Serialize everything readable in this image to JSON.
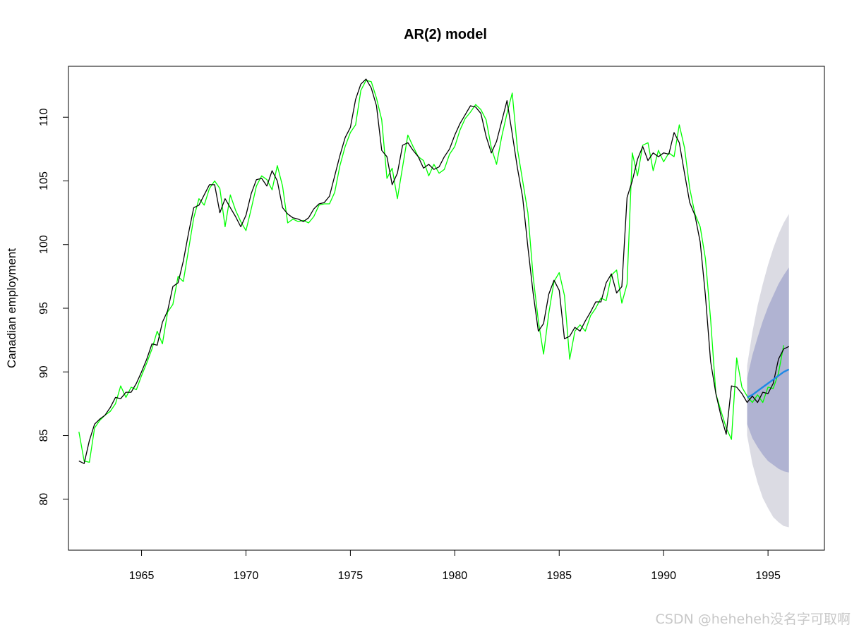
{
  "chart_data": {
    "type": "line",
    "title": "AR(2) model",
    "xlabel": "",
    "ylabel": "Canadian employment",
    "xlim": [
      1961.5,
      1997.7
    ],
    "ylim": [
      76,
      114
    ],
    "x_ticks": [
      1965,
      1970,
      1975,
      1980,
      1985,
      1990,
      1995
    ],
    "y_ticks": [
      80,
      85,
      90,
      95,
      100,
      105,
      110
    ],
    "grid": false,
    "legend": "none",
    "series": [
      {
        "role": "observed",
        "color": "#000000",
        "points": [
          [
            1962.0,
            83.0
          ],
          [
            1962.25,
            82.8
          ],
          [
            1962.5,
            84.6
          ],
          [
            1962.75,
            85.9
          ],
          [
            1963.0,
            86.3
          ],
          [
            1963.25,
            86.6
          ],
          [
            1963.5,
            87.2
          ],
          [
            1963.75,
            88.0
          ],
          [
            1964.0,
            87.9
          ],
          [
            1964.25,
            88.4
          ],
          [
            1964.5,
            88.4
          ],
          [
            1964.75,
            89.1
          ],
          [
            1965.0,
            90.0
          ],
          [
            1965.25,
            91.0
          ],
          [
            1965.5,
            92.2
          ],
          [
            1965.75,
            92.1
          ],
          [
            1966.0,
            93.9
          ],
          [
            1966.25,
            94.8
          ],
          [
            1966.5,
            96.7
          ],
          [
            1966.75,
            97.0
          ],
          [
            1967.0,
            98.7
          ],
          [
            1967.25,
            100.9
          ],
          [
            1967.5,
            102.9
          ],
          [
            1967.75,
            103.1
          ],
          [
            1968.0,
            103.9
          ],
          [
            1968.25,
            104.7
          ],
          [
            1968.5,
            104.7
          ],
          [
            1968.75,
            102.5
          ],
          [
            1969.0,
            103.6
          ],
          [
            1969.25,
            102.9
          ],
          [
            1969.5,
            102.2
          ],
          [
            1969.75,
            101.4
          ],
          [
            1970.0,
            102.3
          ],
          [
            1970.25,
            104.0
          ],
          [
            1970.5,
            105.1
          ],
          [
            1970.75,
            105.2
          ],
          [
            1971.0,
            104.6
          ],
          [
            1971.25,
            105.8
          ],
          [
            1971.5,
            105.0
          ],
          [
            1971.75,
            102.9
          ],
          [
            1972.0,
            102.4
          ],
          [
            1972.25,
            102.1
          ],
          [
            1972.5,
            102.0
          ],
          [
            1972.75,
            101.8
          ],
          [
            1973.0,
            102.1
          ],
          [
            1973.25,
            102.8
          ],
          [
            1973.5,
            103.2
          ],
          [
            1973.75,
            103.3
          ],
          [
            1974.0,
            103.8
          ],
          [
            1974.25,
            105.4
          ],
          [
            1974.5,
            107.0
          ],
          [
            1974.75,
            108.4
          ],
          [
            1975.0,
            109.2
          ],
          [
            1975.25,
            111.4
          ],
          [
            1975.5,
            112.6
          ],
          [
            1975.75,
            113.0
          ],
          [
            1976.0,
            112.3
          ],
          [
            1976.25,
            110.9
          ],
          [
            1976.5,
            107.4
          ],
          [
            1976.75,
            106.9
          ],
          [
            1977.0,
            104.7
          ],
          [
            1977.25,
            105.6
          ],
          [
            1977.5,
            107.8
          ],
          [
            1977.75,
            108.0
          ],
          [
            1978.0,
            107.4
          ],
          [
            1978.25,
            106.9
          ],
          [
            1978.5,
            106.0
          ],
          [
            1978.75,
            106.3
          ],
          [
            1979.0,
            105.9
          ],
          [
            1979.25,
            106.1
          ],
          [
            1979.5,
            106.9
          ],
          [
            1979.75,
            107.5
          ],
          [
            1980.0,
            108.6
          ],
          [
            1980.25,
            109.5
          ],
          [
            1980.5,
            110.2
          ],
          [
            1980.75,
            110.9
          ],
          [
            1981.0,
            110.8
          ],
          [
            1981.25,
            110.3
          ],
          [
            1981.5,
            108.5
          ],
          [
            1981.75,
            107.2
          ],
          [
            1982.0,
            108.1
          ],
          [
            1982.25,
            109.7
          ],
          [
            1982.5,
            111.3
          ],
          [
            1982.75,
            108.7
          ],
          [
            1983.0,
            106.0
          ],
          [
            1983.25,
            103.7
          ],
          [
            1983.5,
            99.8
          ],
          [
            1983.75,
            96.2
          ],
          [
            1984.0,
            93.2
          ],
          [
            1984.25,
            93.8
          ],
          [
            1984.5,
            96.1
          ],
          [
            1984.75,
            97.2
          ],
          [
            1985.0,
            96.4
          ],
          [
            1985.25,
            92.6
          ],
          [
            1985.5,
            92.8
          ],
          [
            1985.75,
            93.5
          ],
          [
            1986.0,
            93.2
          ],
          [
            1986.25,
            94.0
          ],
          [
            1986.5,
            94.7
          ],
          [
            1986.75,
            95.5
          ],
          [
            1987.0,
            95.5
          ],
          [
            1987.25,
            97.0
          ],
          [
            1987.5,
            97.7
          ],
          [
            1987.75,
            96.2
          ],
          [
            1988.0,
            96.7
          ],
          [
            1988.25,
            103.7
          ],
          [
            1988.5,
            105.0
          ],
          [
            1988.75,
            106.7
          ],
          [
            1989.0,
            107.7
          ],
          [
            1989.25,
            106.6
          ],
          [
            1989.5,
            107.2
          ],
          [
            1989.75,
            106.9
          ],
          [
            1990.0,
            107.2
          ],
          [
            1990.25,
            107.1
          ],
          [
            1990.5,
            108.8
          ],
          [
            1990.75,
            108.0
          ],
          [
            1991.0,
            105.6
          ],
          [
            1991.25,
            103.3
          ],
          [
            1991.5,
            102.3
          ],
          [
            1991.75,
            100.2
          ],
          [
            1992.0,
            96.0
          ],
          [
            1992.25,
            90.8
          ],
          [
            1992.5,
            88.3
          ],
          [
            1992.75,
            86.5
          ],
          [
            1993.0,
            85.1
          ],
          [
            1993.25,
            88.9
          ],
          [
            1993.5,
            88.8
          ],
          [
            1993.75,
            88.3
          ],
          [
            1994.0,
            87.6
          ],
          [
            1994.25,
            88.1
          ],
          [
            1994.5,
            87.6
          ],
          [
            1994.75,
            88.4
          ],
          [
            1995.0,
            88.3
          ],
          [
            1995.25,
            89.1
          ],
          [
            1995.5,
            91.0
          ],
          [
            1995.75,
            91.8
          ],
          [
            1996.0,
            92.0
          ]
        ]
      },
      {
        "role": "fitted",
        "color": "#00ff00",
        "points": [
          [
            1962.0,
            85.3
          ],
          [
            1962.25,
            83.0
          ],
          [
            1962.5,
            82.9
          ],
          [
            1962.75,
            85.6
          ],
          [
            1963.0,
            86.2
          ],
          [
            1963.25,
            86.6
          ],
          [
            1963.5,
            86.9
          ],
          [
            1963.75,
            87.5
          ],
          [
            1964.0,
            88.9
          ],
          [
            1964.25,
            88.0
          ],
          [
            1964.5,
            88.8
          ],
          [
            1964.75,
            88.6
          ],
          [
            1965.0,
            89.7
          ],
          [
            1965.25,
            90.7
          ],
          [
            1965.5,
            91.8
          ],
          [
            1965.75,
            93.2
          ],
          [
            1966.0,
            92.2
          ],
          [
            1966.25,
            94.7
          ],
          [
            1966.5,
            95.3
          ],
          [
            1966.75,
            97.5
          ],
          [
            1967.0,
            97.1
          ],
          [
            1967.25,
            99.6
          ],
          [
            1967.5,
            102.1
          ],
          [
            1967.75,
            103.6
          ],
          [
            1968.0,
            103.1
          ],
          [
            1968.25,
            104.4
          ],
          [
            1968.5,
            105.0
          ],
          [
            1968.75,
            104.4
          ],
          [
            1969.0,
            101.4
          ],
          [
            1969.25,
            103.9
          ],
          [
            1969.5,
            102.7
          ],
          [
            1969.75,
            101.8
          ],
          [
            1970.0,
            101.1
          ],
          [
            1970.25,
            102.8
          ],
          [
            1970.5,
            104.6
          ],
          [
            1970.75,
            105.4
          ],
          [
            1971.0,
            105.1
          ],
          [
            1971.25,
            104.3
          ],
          [
            1971.5,
            106.2
          ],
          [
            1971.75,
            104.6
          ],
          [
            1972.0,
            101.7
          ],
          [
            1972.25,
            102.0
          ],
          [
            1972.5,
            101.8
          ],
          [
            1972.75,
            101.9
          ],
          [
            1973.0,
            101.7
          ],
          [
            1973.25,
            102.2
          ],
          [
            1973.5,
            103.1
          ],
          [
            1973.75,
            103.2
          ],
          [
            1974.0,
            103.2
          ],
          [
            1974.25,
            104.1
          ],
          [
            1974.5,
            106.2
          ],
          [
            1974.75,
            107.7
          ],
          [
            1975.0,
            108.8
          ],
          [
            1975.25,
            109.4
          ],
          [
            1975.5,
            112.1
          ],
          [
            1975.75,
            112.9
          ],
          [
            1976.0,
            112.8
          ],
          [
            1976.25,
            111.5
          ],
          [
            1976.5,
            109.8
          ],
          [
            1976.75,
            105.2
          ],
          [
            1977.0,
            106.0
          ],
          [
            1977.25,
            103.6
          ],
          [
            1977.5,
            106.1
          ],
          [
            1977.75,
            108.6
          ],
          [
            1978.0,
            107.7
          ],
          [
            1978.25,
            106.9
          ],
          [
            1978.5,
            106.6
          ],
          [
            1978.75,
            105.4
          ],
          [
            1979.0,
            106.3
          ],
          [
            1979.25,
            105.6
          ],
          [
            1979.5,
            105.9
          ],
          [
            1979.75,
            107.1
          ],
          [
            1980.0,
            107.7
          ],
          [
            1980.25,
            109.0
          ],
          [
            1980.5,
            109.9
          ],
          [
            1980.75,
            110.4
          ],
          [
            1981.0,
            111.0
          ],
          [
            1981.25,
            110.6
          ],
          [
            1981.5,
            109.8
          ],
          [
            1981.75,
            107.6
          ],
          [
            1982.0,
            106.3
          ],
          [
            1982.25,
            108.5
          ],
          [
            1982.5,
            110.3
          ],
          [
            1982.75,
            111.9
          ],
          [
            1983.0,
            107.5
          ],
          [
            1983.25,
            105.0
          ],
          [
            1983.5,
            102.5
          ],
          [
            1983.75,
            97.5
          ],
          [
            1984.0,
            94.0
          ],
          [
            1984.25,
            91.4
          ],
          [
            1984.5,
            94.6
          ],
          [
            1984.75,
            97.1
          ],
          [
            1985.0,
            97.8
          ],
          [
            1985.25,
            96.0
          ],
          [
            1985.5,
            91.0
          ],
          [
            1985.75,
            93.2
          ],
          [
            1986.0,
            93.7
          ],
          [
            1986.25,
            93.2
          ],
          [
            1986.5,
            94.4
          ],
          [
            1986.75,
            95.0
          ],
          [
            1987.0,
            95.8
          ],
          [
            1987.25,
            95.6
          ],
          [
            1987.5,
            97.6
          ],
          [
            1987.75,
            98.0
          ],
          [
            1988.0,
            95.4
          ],
          [
            1988.25,
            96.9
          ],
          [
            1988.5,
            107.2
          ],
          [
            1988.75,
            105.4
          ],
          [
            1989.0,
            107.8
          ],
          [
            1989.25,
            108.0
          ],
          [
            1989.5,
            105.8
          ],
          [
            1989.75,
            107.4
          ],
          [
            1990.0,
            106.5
          ],
          [
            1990.25,
            107.2
          ],
          [
            1990.5,
            106.9
          ],
          [
            1990.75,
            109.4
          ],
          [
            1991.0,
            107.6
          ],
          [
            1991.25,
            104.4
          ],
          [
            1991.5,
            102.4
          ],
          [
            1991.75,
            101.4
          ],
          [
            1992.0,
            98.9
          ],
          [
            1992.25,
            94.1
          ],
          [
            1992.5,
            88.3
          ],
          [
            1992.75,
            86.9
          ],
          [
            1993.0,
            85.6
          ],
          [
            1993.25,
            84.7
          ],
          [
            1993.5,
            91.1
          ],
          [
            1993.75,
            88.8
          ],
          [
            1994.0,
            88.1
          ],
          [
            1994.25,
            87.6
          ],
          [
            1994.5,
            88.2
          ],
          [
            1994.75,
            87.6
          ],
          [
            1995.0,
            88.8
          ],
          [
            1995.25,
            88.7
          ],
          [
            1995.5,
            89.9
          ],
          [
            1995.75,
            92.1
          ]
        ]
      },
      {
        "role": "forecast",
        "color": "#1e88e5",
        "points": [
          [
            1994.0,
            88.0
          ],
          [
            1994.25,
            88.2
          ],
          [
            1994.5,
            88.5
          ],
          [
            1994.75,
            88.8
          ],
          [
            1995.0,
            89.1
          ],
          [
            1995.25,
            89.4
          ],
          [
            1995.5,
            89.7
          ],
          [
            1995.75,
            90.0
          ],
          [
            1996.0,
            90.2
          ]
        ]
      }
    ],
    "forecast_intervals": {
      "x": [
        1994.0,
        1994.25,
        1994.5,
        1994.75,
        1995.0,
        1995.25,
        1995.5,
        1995.75,
        1996.0
      ],
      "inner_lower": [
        85.9,
        84.8,
        84.1,
        83.5,
        83.0,
        82.7,
        82.4,
        82.2,
        82.1
      ],
      "inner_upper": [
        89.5,
        91.3,
        92.7,
        94.0,
        95.1,
        96.0,
        96.9,
        97.6,
        98.2
      ],
      "outer_lower": [
        85.0,
        82.8,
        81.3,
        80.1,
        79.3,
        78.6,
        78.2,
        77.9,
        77.8
      ],
      "outer_upper": [
        90.5,
        93.1,
        95.2,
        96.9,
        98.4,
        99.7,
        100.8,
        101.7,
        102.4
      ],
      "inner_color": "#b0b3d2",
      "outer_color": "#dbdbe3"
    }
  },
  "watermark": "CSDN @heheheh没名字可取啊"
}
